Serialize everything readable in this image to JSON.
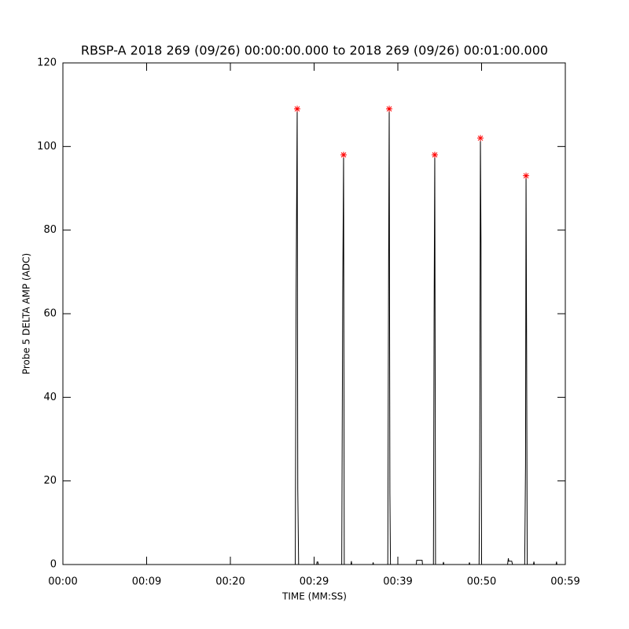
{
  "chart_data": {
    "type": "line",
    "title": "RBSP-A 2018 269 (09/26) 00:00:00.000 to 2018 269 (09/26) 00:01:00.000",
    "x_label": "TIME (MM:SS)",
    "y_label": "Probe 5 DELTA AMP (ADC)",
    "xlim": [
      0,
      60
    ],
    "ylim": [
      0,
      120
    ],
    "xticks": [
      {
        "value": 0,
        "label": "00:00"
      },
      {
        "value": 10,
        "label": "00:09"
      },
      {
        "value": 20,
        "label": "00:20"
      },
      {
        "value": 30,
        "label": "00:29"
      },
      {
        "value": 40,
        "label": "00:39"
      },
      {
        "value": 50,
        "label": "00:50"
      },
      {
        "value": 60,
        "label": "00:59"
      }
    ],
    "yticks": [
      0,
      20,
      40,
      60,
      80,
      100,
      120
    ],
    "series": [
      {
        "color": "#000000",
        "x": [
          0,
          27.75,
          27.85,
          27.98,
          28.05,
          28.15,
          30.3,
          30.35,
          30.45,
          30.5,
          33.3,
          33.42,
          33.52,
          33.6,
          34.4,
          34.45,
          34.5,
          37.0,
          37.05,
          37.1,
          38.8,
          38.9,
          38.97,
          39.05,
          39.12,
          42.2,
          42.25,
          42.9,
          42.95,
          44.25,
          44.33,
          44.41,
          44.5,
          45.4,
          45.45,
          45.5,
          48.5,
          48.55,
          48.6,
          49.7,
          49.78,
          49.86,
          49.93,
          50.0,
          53.1,
          53.2,
          53.25,
          53.6,
          53.7,
          55.15,
          55.25,
          55.31,
          55.38,
          55.45,
          56.2,
          56.25,
          56.3,
          58.9,
          58.95,
          59.0,
          60
        ],
        "values": [
          0,
          0,
          65,
          109,
          18,
          0,
          0,
          0.6,
          0.6,
          0,
          0,
          65,
          98,
          0,
          0,
          0.8,
          0,
          0,
          0.5,
          0,
          0,
          72,
          109,
          17,
          0,
          0,
          1,
          1,
          0,
          0,
          59,
          98,
          0,
          0,
          0.6,
          0,
          0,
          0.5,
          0,
          0,
          26,
          102,
          77,
          0,
          0,
          1.5,
          0.8,
          0.8,
          0,
          0,
          24,
          93,
          51,
          0,
          0,
          0.7,
          0,
          0,
          0.7,
          0,
          0
        ]
      },
      {
        "type": "scatter",
        "color": "#ff0000",
        "x": [
          27.98,
          33.52,
          38.97,
          44.41,
          49.86,
          55.31
        ],
        "values": [
          109,
          98,
          109,
          98,
          102,
          93
        ]
      }
    ]
  }
}
